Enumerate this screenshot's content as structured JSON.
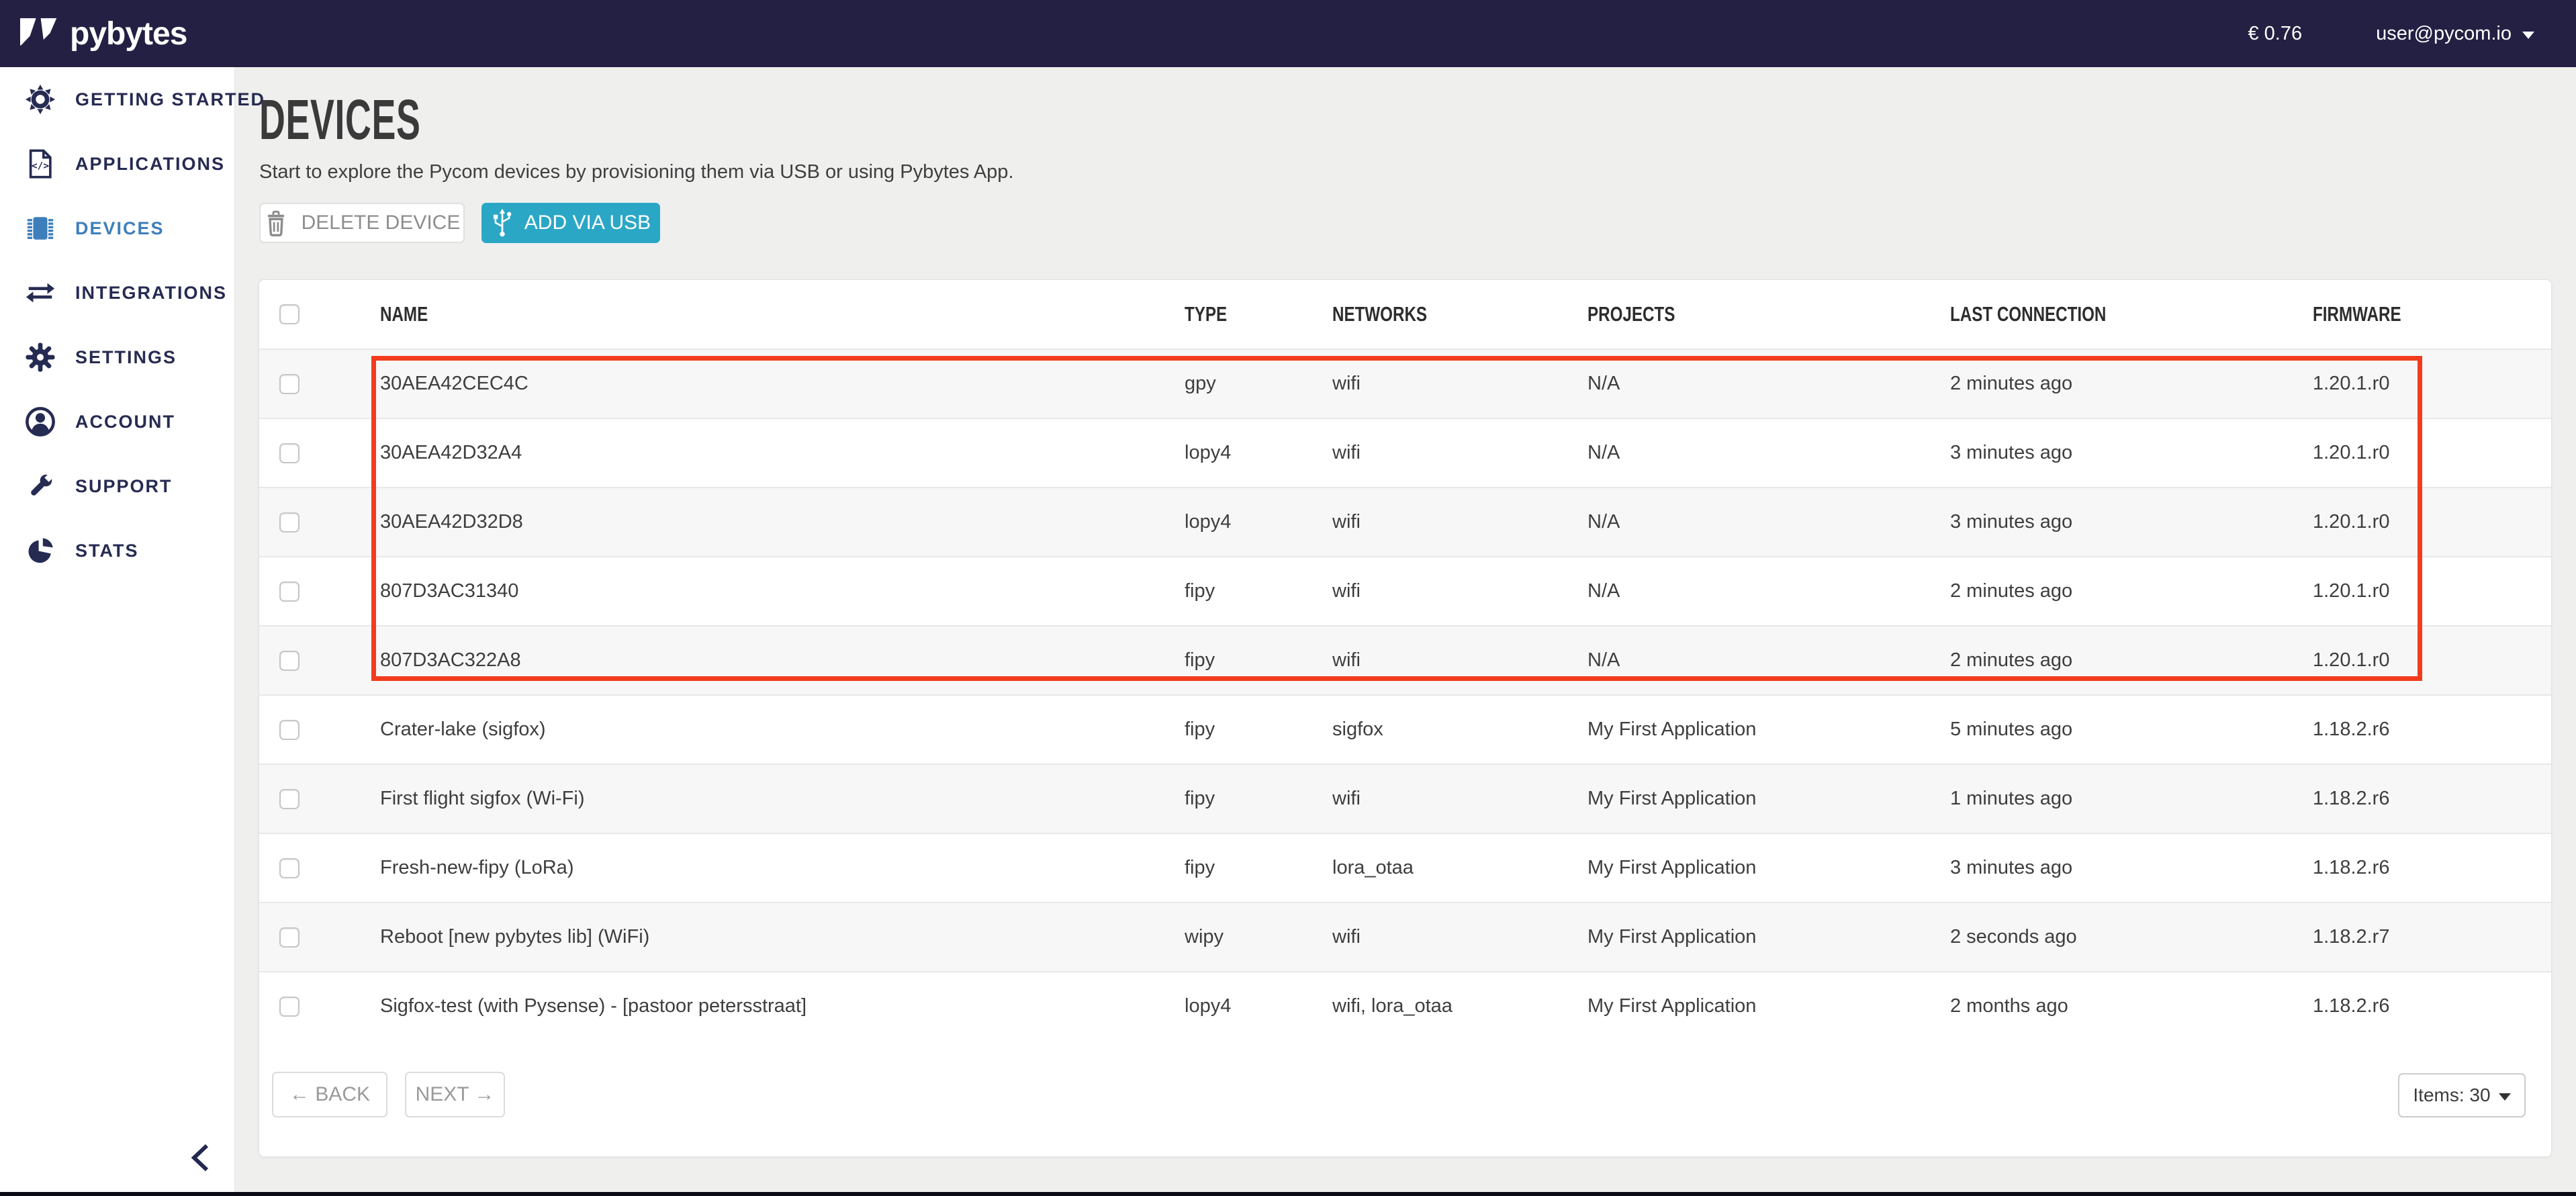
{
  "topbar": {
    "logo_text": "pybytes",
    "balance": "€ 0.76",
    "user_email": "user@pycom.io"
  },
  "sidebar": {
    "items": [
      {
        "label": "GETTING STARTED",
        "icon": "getting-started-icon",
        "active": false
      },
      {
        "label": "APPLICATIONS",
        "icon": "applications-icon",
        "active": false
      },
      {
        "label": "DEVICES",
        "icon": "devices-icon",
        "active": true
      },
      {
        "label": "INTEGRATIONS",
        "icon": "integrations-icon",
        "active": false
      },
      {
        "label": "SETTINGS",
        "icon": "settings-icon",
        "active": false
      },
      {
        "label": "ACCOUNT",
        "icon": "account-icon",
        "active": false
      },
      {
        "label": "SUPPORT",
        "icon": "support-icon",
        "active": false
      },
      {
        "label": "STATS",
        "icon": "stats-icon",
        "active": false
      }
    ]
  },
  "page": {
    "title": "DEVICES",
    "description": "Start to explore the Pycom devices by provisioning them via USB or using Pybytes App.",
    "buttons": {
      "delete": "DELETE DEVICE",
      "add": "ADD VIA USB"
    }
  },
  "table": {
    "columns": [
      "NAME",
      "TYPE",
      "NETWORKS",
      "PROJECTS",
      "LAST CONNECTION",
      "FIRMWARE"
    ],
    "rows": [
      {
        "name": "30AEA42CEC4C",
        "type": "gpy",
        "networks": "wifi",
        "projects": "N/A",
        "last_connection": "2 minutes ago",
        "firmware": "1.20.1.r0",
        "highlighted": true
      },
      {
        "name": "30AEA42D32A4",
        "type": "lopy4",
        "networks": "wifi",
        "projects": "N/A",
        "last_connection": "3 minutes ago",
        "firmware": "1.20.1.r0",
        "highlighted": true
      },
      {
        "name": "30AEA42D32D8",
        "type": "lopy4",
        "networks": "wifi",
        "projects": "N/A",
        "last_connection": "3 minutes ago",
        "firmware": "1.20.1.r0",
        "highlighted": true
      },
      {
        "name": "807D3AC31340",
        "type": "fipy",
        "networks": "wifi",
        "projects": "N/A",
        "last_connection": "2 minutes ago",
        "firmware": "1.20.1.r0",
        "highlighted": true
      },
      {
        "name": "807D3AC322A8",
        "type": "fipy",
        "networks": "wifi",
        "projects": "N/A",
        "last_connection": "2 minutes ago",
        "firmware": "1.20.1.r0",
        "highlighted": true
      },
      {
        "name": "Crater-lake (sigfox)",
        "type": "fipy",
        "networks": "sigfox",
        "projects": "My First Application",
        "last_connection": "5 minutes ago",
        "firmware": "1.18.2.r6",
        "highlighted": false
      },
      {
        "name": "First flight sigfox (Wi-Fi)",
        "type": "fipy",
        "networks": "wifi",
        "projects": "My First Application",
        "last_connection": "1 minutes ago",
        "firmware": "1.18.2.r6",
        "highlighted": false
      },
      {
        "name": "Fresh-new-fipy (LoRa)",
        "type": "fipy",
        "networks": "lora_otaa",
        "projects": "My First Application",
        "last_connection": "3 minutes ago",
        "firmware": "1.18.2.r6",
        "highlighted": false
      },
      {
        "name": "Reboot [new pybytes lib] (WiFi)",
        "type": "wipy",
        "networks": "wifi",
        "projects": "My First Application",
        "last_connection": "2 seconds ago",
        "firmware": "1.18.2.r7",
        "highlighted": false
      },
      {
        "name": "Sigfox-test (with Pysense) - [pastoor petersstraat]",
        "type": "lopy4",
        "networks": "wifi, lora_otaa",
        "projects": "My First Application",
        "last_connection": "2 months ago",
        "firmware": "1.18.2.r6",
        "highlighted": false
      }
    ]
  },
  "pagination": {
    "back": "← BACK",
    "next": "NEXT →",
    "items_per_page": "Items: 30"
  },
  "colors": {
    "topbar": "#232043",
    "accent_blue": "#3e7fbb",
    "teal_button": "#2ba7c6",
    "highlight_red": "#f23c1e",
    "row_stripe": "#f7f7f7"
  }
}
